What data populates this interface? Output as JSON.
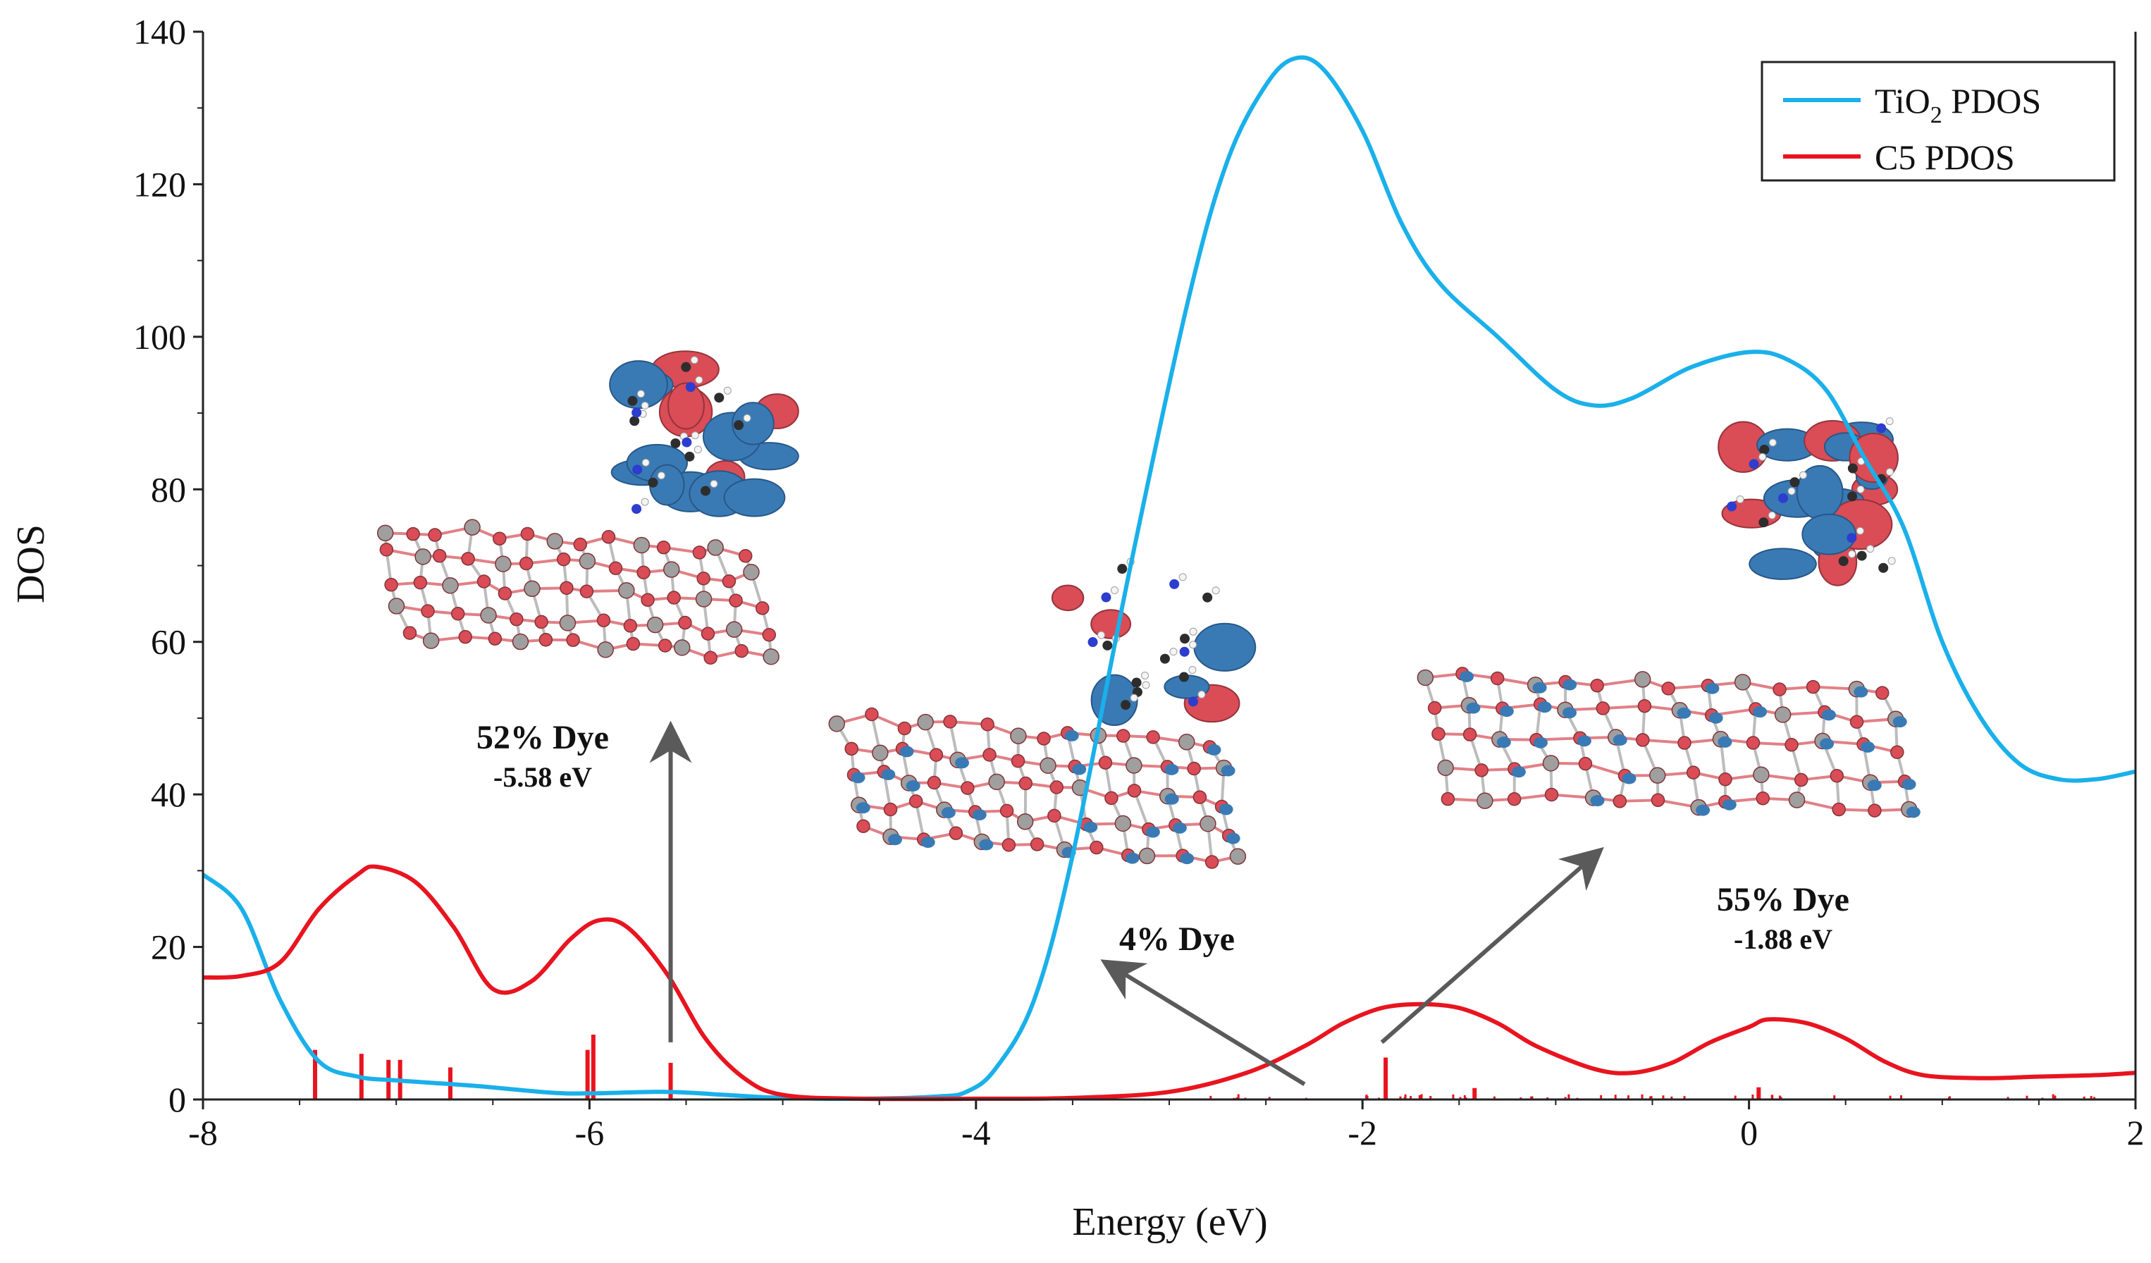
{
  "chart_data": {
    "type": "line",
    "title": "",
    "xlabel": "Energy (eV)",
    "ylabel": "DOS",
    "xlim": [
      -8,
      2
    ],
    "ylim": [
      0,
      140
    ],
    "xticks": [
      -8,
      -6,
      -4,
      -2,
      0,
      2
    ],
    "yticks": [
      0,
      20,
      40,
      60,
      80,
      100,
      120,
      140
    ],
    "grid": false,
    "legend_position": "top-right",
    "colors": {
      "tio2": "#1ab0ea",
      "c5": "#e8141f",
      "arrow": "#5a5a5a",
      "orbital_blue": "#2f73b2",
      "orbital_red": "#d9434d"
    },
    "legend": [
      {
        "name_main": "TiO",
        "name_sub": "2",
        "name_rest": " PDOS",
        "color": "#1ab0ea"
      },
      {
        "name_main": "C5 PDOS",
        "name_sub": "",
        "name_rest": "",
        "color": "#e8141f"
      }
    ],
    "series": [
      {
        "name": "TiO2 PDOS",
        "color": "#1ab0ea",
        "x": [
          -8.0,
          -7.8,
          -7.6,
          -7.4,
          -7.2,
          -7.0,
          -6.6,
          -6.2,
          -6.0,
          -5.6,
          -5.3,
          -5.0,
          -4.6,
          -4.2,
          -4.05,
          -3.9,
          -3.7,
          -3.5,
          -3.2,
          -2.9,
          -2.7,
          -2.5,
          -2.35,
          -2.2,
          -2.0,
          -1.8,
          -1.6,
          -1.3,
          -1.0,
          -0.8,
          -0.6,
          -0.3,
          0.0,
          0.2,
          0.4,
          0.6,
          0.8,
          1.0,
          1.2,
          1.4,
          1.6,
          1.8,
          2.0
        ],
        "y": [
          29.5,
          25.0,
          13.0,
          5.0,
          3.0,
          2.5,
          1.8,
          0.9,
          0.8,
          1.0,
          0.6,
          0.2,
          0.1,
          0.4,
          1.0,
          4.0,
          13.0,
          32.0,
          70.0,
          105.0,
          123.0,
          133.0,
          136.5,
          135.0,
          127.0,
          115.0,
          107.0,
          100.0,
          93.0,
          91.0,
          92.0,
          96.0,
          98.0,
          97.0,
          93.0,
          84.0,
          75.0,
          60.0,
          50.0,
          44.0,
          42.0,
          42.0,
          43.0
        ]
      },
      {
        "name": "C5 PDOS",
        "color": "#e8141f",
        "x": [
          -8.0,
          -7.8,
          -7.6,
          -7.4,
          -7.2,
          -7.1,
          -6.9,
          -6.7,
          -6.5,
          -6.3,
          -6.1,
          -5.95,
          -5.8,
          -5.6,
          -5.4,
          -5.2,
          -5.0,
          -4.6,
          -4.0,
          -3.5,
          -3.0,
          -2.6,
          -2.3,
          -2.1,
          -1.9,
          -1.7,
          -1.5,
          -1.3,
          -1.1,
          -0.8,
          -0.6,
          -0.4,
          -0.2,
          0.0,
          0.1,
          0.3,
          0.5,
          0.7,
          0.9,
          1.2,
          1.5,
          1.8,
          2.0
        ],
        "y": [
          16.0,
          16.2,
          18.0,
          25.0,
          29.5,
          30.5,
          28.5,
          22.5,
          14.5,
          15.5,
          21.0,
          23.5,
          22.5,
          16.5,
          8.0,
          2.8,
          0.6,
          0.1,
          0.1,
          0.2,
          1.0,
          3.5,
          7.0,
          10.0,
          12.0,
          12.5,
          12.0,
          10.0,
          7.0,
          4.0,
          3.5,
          4.8,
          7.5,
          9.5,
          10.5,
          10.0,
          8.0,
          5.0,
          3.2,
          2.8,
          3.0,
          3.2,
          3.5
        ]
      }
    ],
    "stick_lines": [
      {
        "x": -7.42,
        "y": 6.5
      },
      {
        "x": -7.18,
        "y": 6.0
      },
      {
        "x": -7.04,
        "y": 5.2
      },
      {
        "x": -6.98,
        "y": 5.2
      },
      {
        "x": -6.72,
        "y": 4.2
      },
      {
        "x": -6.01,
        "y": 6.5
      },
      {
        "x": -5.98,
        "y": 8.5
      },
      {
        "x": -5.58,
        "y": 4.8
      },
      {
        "x": -1.88,
        "y": 5.5
      },
      {
        "x": -1.42,
        "y": 1.5
      },
      {
        "x": 0.05,
        "y": 1.6
      }
    ],
    "annotations": [
      {
        "label": "52% Dye",
        "value": "-5.58 eV",
        "arrow_from": [
          -5.58,
          7.5
        ],
        "arrow_to": [
          -5.58,
          48.0
        ]
      },
      {
        "label": "4% Dye",
        "value": "",
        "arrow_from": [
          -2.3,
          2.0
        ],
        "arrow_to": [
          -3.3,
          17.5
        ]
      },
      {
        "label": "55% Dye",
        "value": "-1.88 eV",
        "arrow_from": [
          -1.9,
          7.5
        ],
        "arrow_to": [
          -0.8,
          32.0
        ]
      }
    ]
  }
}
